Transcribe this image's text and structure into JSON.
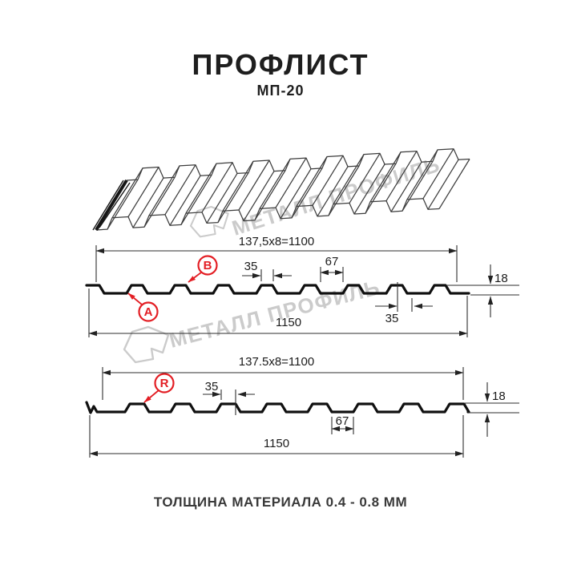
{
  "header": {
    "title": "ПРОФЛИСТ",
    "subtitle": "МП-20"
  },
  "watermark": {
    "text": "МЕТАЛЛ ПРОФИЛЬ"
  },
  "diagram": {
    "type": "technical-drawing",
    "product": "МП-20",
    "views": [
      {
        "name": "profile-section-front",
        "labels": [
          {
            "id": "A"
          },
          {
            "id": "B"
          }
        ],
        "dims": {
          "module_width": "137,5x8=1100",
          "rib_top_width": "35",
          "rib_spacing": "67",
          "profile_height": "18",
          "rib_base_width": "35",
          "overall_width": "1150"
        }
      },
      {
        "name": "profile-section-reverse",
        "labels": [
          {
            "id": "R"
          }
        ],
        "dims": {
          "module_width": "137.5x8=1100",
          "rib_top_width": "35",
          "rib_spacing": "67",
          "profile_height": "18",
          "overall_width": "1150"
        }
      }
    ]
  },
  "footer": {
    "note": "ТОЛЩИНА МАТЕРИАЛА 0.4 - 0.8 ММ"
  }
}
